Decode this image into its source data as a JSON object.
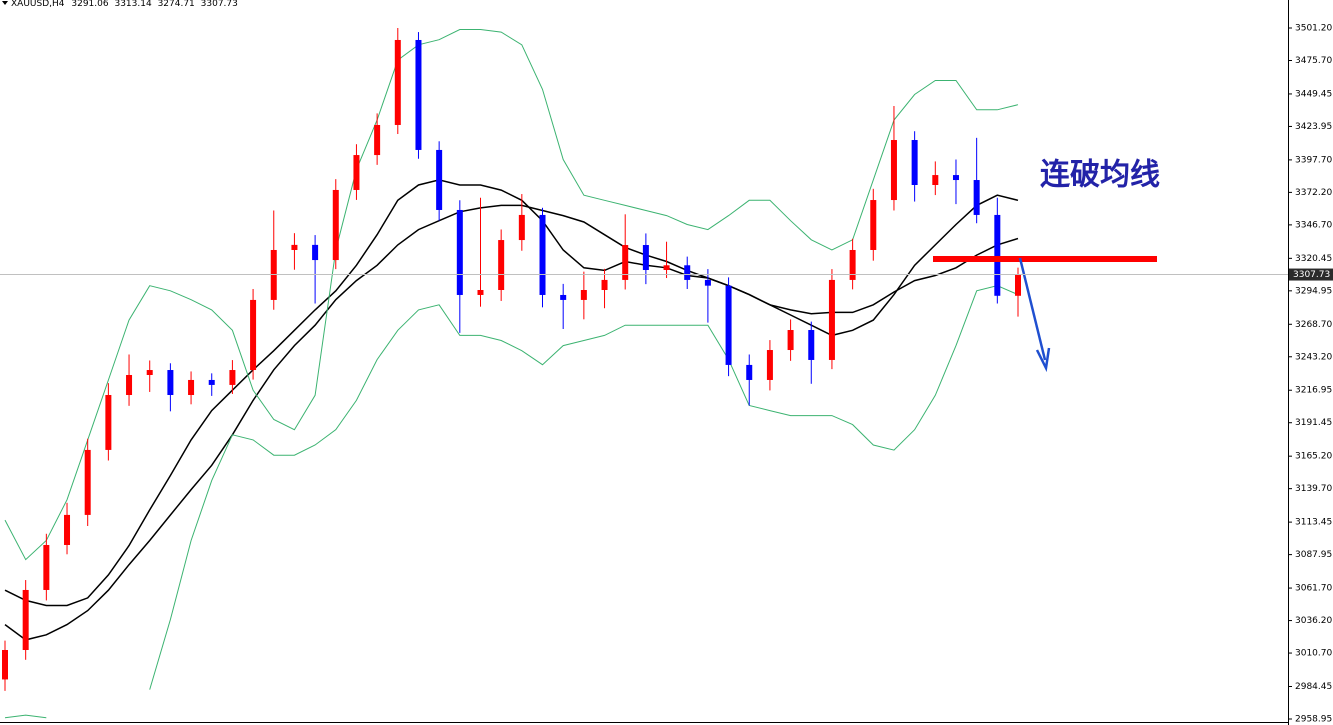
{
  "chart_data": {
    "type": "candlestick",
    "symbol": "XAUUSD,H4",
    "annotation": "连破均线",
    "up_color": "#ff0000",
    "down_color": "#0000ff",
    "ylim": [
      2958.95,
      3501.2
    ],
    "yticks": [
      {
        "value": 3501.2,
        "label": "3501.20"
      },
      {
        "value": 3475.7,
        "label": "3475.70"
      },
      {
        "value": 3449.45,
        "label": "3449.45"
      },
      {
        "value": 3423.95,
        "label": "3423.95"
      },
      {
        "value": 3397.7,
        "label": "3397.70"
      },
      {
        "value": 3372.2,
        "label": "3372.20"
      },
      {
        "value": 3346.7,
        "label": "3346.70"
      },
      {
        "value": 3320.45,
        "label": "3320.45"
      },
      {
        "value": 3294.95,
        "label": "3294.95"
      },
      {
        "value": 3268.7,
        "label": "3268.70"
      },
      {
        "value": 3243.2,
        "label": "3243.20"
      },
      {
        "value": 3216.95,
        "label": "3216.95"
      },
      {
        "value": 3191.45,
        "label": "3191.45"
      },
      {
        "value": 3165.2,
        "label": "3165.20"
      },
      {
        "value": 3139.7,
        "label": "3139.70"
      },
      {
        "value": 3113.45,
        "label": "3113.45"
      },
      {
        "value": 3087.95,
        "label": "3087.95"
      },
      {
        "value": 3061.7,
        "label": "3061.70"
      },
      {
        "value": 3036.2,
        "label": "3036.20"
      },
      {
        "value": 3010.7,
        "label": "3010.70"
      },
      {
        "value": 2984.45,
        "label": "2984.45"
      },
      {
        "value": 2958.95,
        "label": "2958.95"
      }
    ],
    "open": [
      2990.0,
      3013.1,
      3060.2,
      3095.5,
      3119.1,
      3170.1,
      3213.2,
      3228.9,
      3232.8,
      3213.2,
      3225.0,
      3221.1,
      3232.8,
      3287.8,
      3327.0,
      3331.0,
      3319.1,
      3374.1,
      3401.5,
      3425.1,
      3491.8,
      3405.5,
      3358.4,
      3291.7,
      3295.6,
      3334.8,
      3354.5,
      3291.7,
      3287.8,
      3295.6,
      3303.5,
      3330.9,
      3311.3,
      3315.0,
      3303.5,
      3299.0,
      3236.8,
      3225.0,
      3248.5,
      3264.2,
      3240.7,
      3303.5,
      3327.0,
      3366.2,
      3413.3,
      3378.0,
      3385.8,
      3381.9,
      3354.5,
      3291.06
    ],
    "high": [
      3020.5,
      3068.0,
      3104.3,
      3128.6,
      3178.9,
      3222.5,
      3245.0,
      3240.3,
      3238.1,
      3231.7,
      3230.2,
      3240.6,
      3296.4,
      3358.0,
      3340.2,
      3338.7,
      3382.6,
      3410.0,
      3434.2,
      3501.2,
      3498.0,
      3412.3,
      3366.0,
      3368.0,
      3343.1,
      3370.9,
      3360.1,
      3300.4,
      3310.0,
      3312.2,
      3355.0,
      3340.0,
      3333.5,
      3321.8,
      3312.0,
      3305.5,
      3245.0,
      3256.3,
      3272.5,
      3270.8,
      3312.0,
      3335.8,
      3375.0,
      3440.0,
      3420.2,
      3396.5,
      3398.0,
      3415.0,
      3368.0,
      3313.14
    ],
    "low": [
      2981.0,
      3005.4,
      3052.0,
      3088.2,
      3110.4,
      3161.8,
      3204.7,
      3215.6,
      3200.4,
      3205.9,
      3212.5,
      3214.0,
      3225.3,
      3280.1,
      3311.5,
      3285.0,
      3312.0,
      3366.3,
      3393.8,
      3418.0,
      3398.6,
      3350.0,
      3262.0,
      3282.5,
      3287.0,
      3326.4,
      3282.0,
      3265.0,
      3272.6,
      3281.3,
      3296.0,
      3300.2,
      3305.0,
      3296.4,
      3270.0,
      3228.0,
      3205.0,
      3216.8,
      3240.0,
      3222.0,
      3233.5,
      3296.1,
      3318.6,
      3358.0,
      3365.0,
      3370.1,
      3363.0,
      3348.0,
      3285.0,
      3274.71
    ],
    "close": [
      3013.1,
      3060.2,
      3095.5,
      3119.1,
      3170.1,
      3213.2,
      3228.9,
      3232.8,
      3213.2,
      3225.0,
      3221.1,
      3232.8,
      3287.8,
      3327.0,
      3331.0,
      3319.1,
      3374.1,
      3401.5,
      3425.1,
      3491.8,
      3405.5,
      3358.4,
      3291.7,
      3295.6,
      3334.8,
      3354.5,
      3291.7,
      3287.8,
      3295.6,
      3303.5,
      3330.9,
      3311.3,
      3315.0,
      3303.5,
      3299.0,
      3236.8,
      3225.0,
      3248.5,
      3264.2,
      3240.7,
      3303.5,
      3327.0,
      3366.2,
      3413.3,
      3378.0,
      3385.8,
      3381.9,
      3354.5,
      3291.06,
      3307.73
    ],
    "series": [
      {
        "color": "#000000",
        "values": [
          3060,
          3052,
          3048,
          3048,
          3054,
          3072,
          3095,
          3123,
          3150,
          3178,
          3201,
          3217,
          3233,
          3248,
          3264,
          3280,
          3295,
          3315,
          3339,
          3366,
          3378,
          3382,
          3378,
          3378,
          3374,
          3366,
          3350,
          3327,
          3313,
          3311,
          3318,
          3315,
          3313,
          3307,
          3305,
          3299,
          3292,
          3284,
          3276,
          3268,
          3260,
          3264,
          3272,
          3292,
          3315,
          3331,
          3347,
          3362,
          3370,
          3366
        ]
      },
      {
        "color": "#000000",
        "values": [
          3033,
          3021,
          3025,
          3033,
          3044,
          3060,
          3080,
          3099,
          3119,
          3139,
          3158,
          3182,
          3209,
          3233,
          3252,
          3268,
          3288,
          3303,
          3315,
          3331,
          3343,
          3350,
          3357,
          3360,
          3362,
          3362,
          3358,
          3354,
          3349,
          3339,
          3329,
          3323,
          3318,
          3311,
          3305,
          3299,
          3292,
          3284,
          3280,
          3277,
          3278,
          3278,
          3284,
          3294,
          3303,
          3307,
          3313,
          3323,
          3331,
          3336
        ]
      },
      {
        "color": "#3cb371",
        "values": [
          3115,
          3084,
          3099,
          3131,
          3178,
          3225,
          3272,
          3299,
          3295,
          3288,
          3280,
          3264,
          3217,
          3194,
          3186,
          3213,
          3327,
          3390,
          3429,
          3476,
          3488,
          3492,
          3500,
          3500,
          3498,
          3488,
          3453,
          3398,
          3370,
          3366,
          3362,
          3358,
          3354,
          3347,
          3343,
          3354,
          3366,
          3366,
          3350,
          3335,
          3327,
          3335,
          3382,
          3429,
          3449,
          3460,
          3460,
          3437,
          3437,
          3441
        ]
      },
      {
        "color": "#3cb371",
        "values": [
          2960,
          2962,
          2960,
          null,
          null,
          null,
          null,
          2982,
          3037,
          3099,
          3146,
          3182,
          3178,
          3166,
          3166,
          3174,
          3186,
          3209,
          3241,
          3264,
          3280,
          3284,
          3260,
          3260,
          3256,
          3248,
          3237,
          3252,
          3256,
          3260,
          3268,
          3268,
          3268,
          3268,
          3268,
          3241,
          3205,
          3201,
          3197,
          3197,
          3197,
          3190,
          3174,
          3170,
          3186,
          3213,
          3252,
          3295,
          3299,
          3292
        ]
      }
    ]
  }
}
